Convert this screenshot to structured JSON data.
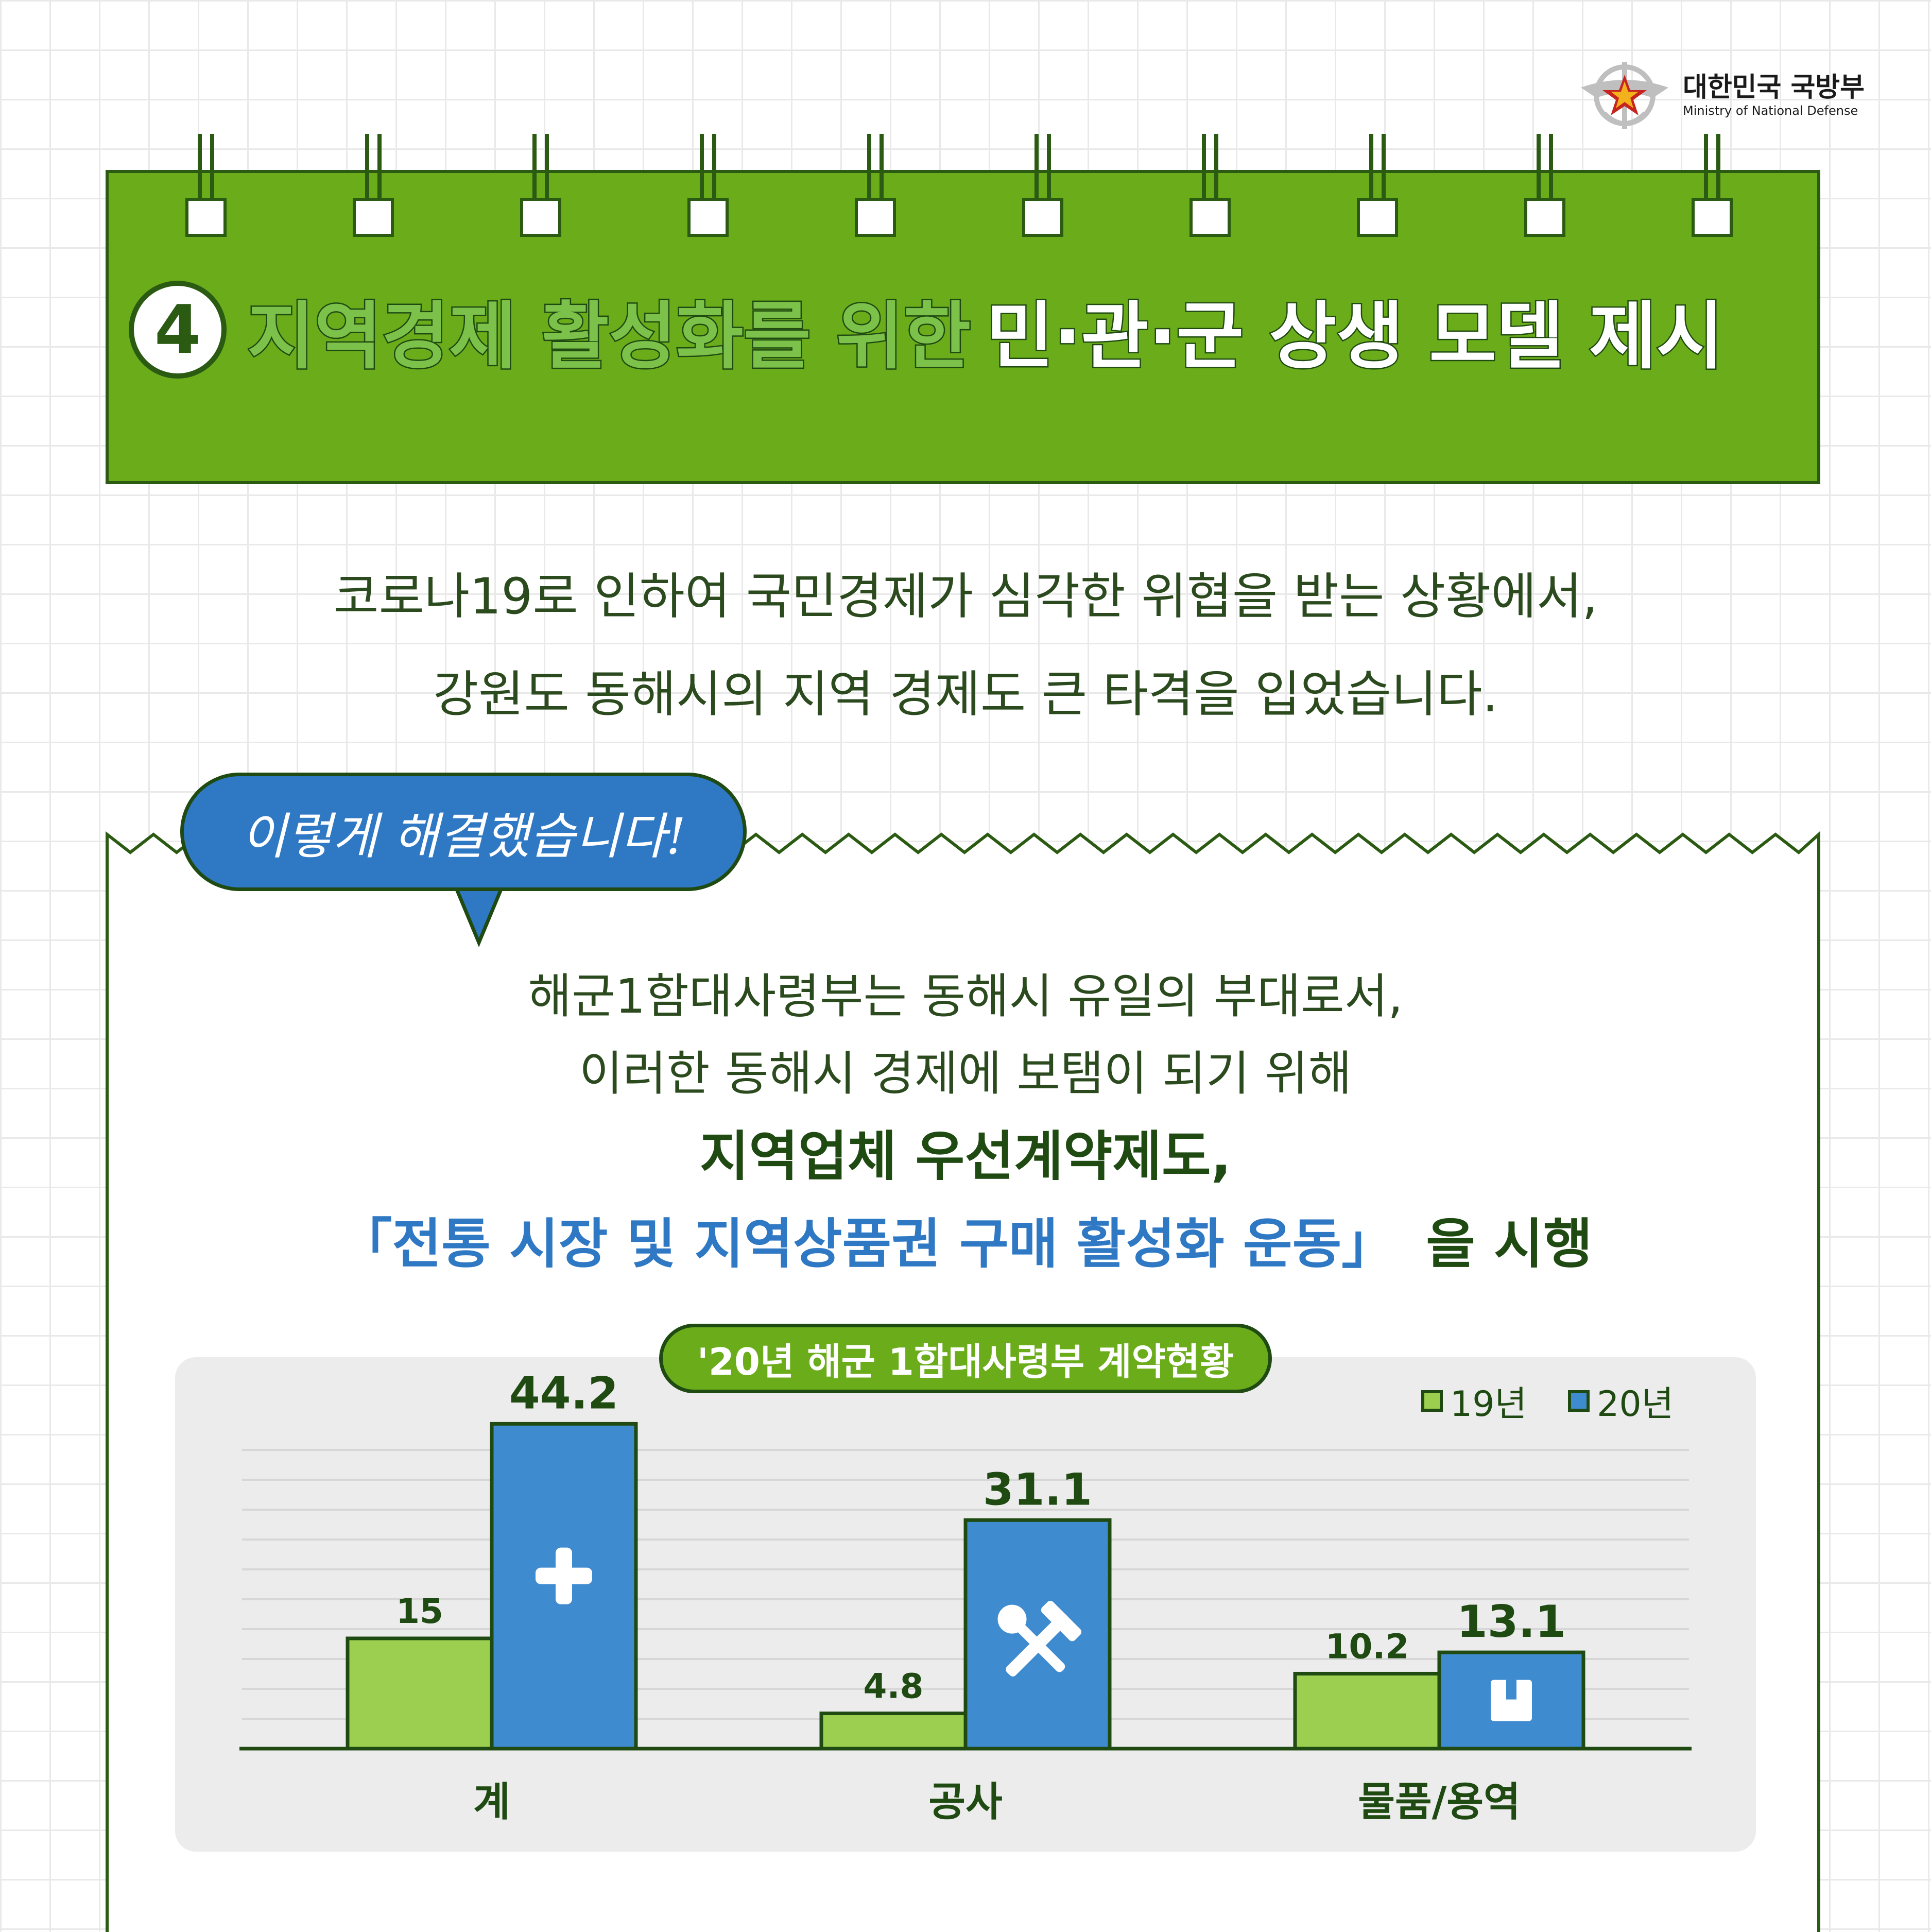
{
  "logo": {
    "ko": "대한민국 국방부",
    "en": "Ministry of National Defense"
  },
  "title": {
    "number": "4",
    "part1": "지역경제 활성화를 위한",
    "part2": "민·관·군 상생 모델 제시"
  },
  "intro": {
    "line1": "코로나19로 인하여 국민경제가 심각한 위협을 받는 상황에서,",
    "line2": "강원도 동해시의 지역 경제도 큰 타격을 입었습니다."
  },
  "bubble": "이렇게 해결했습니다!",
  "body": {
    "line1": "해군1함대사령부는 동해시 유일의 부대로서,",
    "line2": "이러한 동해시 경제에 보탬이 되기 위해",
    "line3": "지역업체 우선계약제도,",
    "line4_blue": "「전통 시장 및 지역상품권 구매 활성화 운동」",
    "line4_dark": "을 시행"
  },
  "colors": {
    "green": "#6aac1a",
    "lightgreen": "#9ccf4f",
    "blue": "#3f8bd0",
    "dark": "#1f4a12"
  },
  "chart_data": {
    "type": "bar",
    "title": "'20년 해군 1함대사령부 계약현황",
    "categories": [
      "계",
      "공사",
      "물품/용역"
    ],
    "series": [
      {
        "name": "19년",
        "values": [
          15,
          4.8,
          10.2
        ]
      },
      {
        "name": "20년",
        "values": [
          44.2,
          31.1,
          13.1
        ]
      }
    ],
    "value_labels": [
      [
        "15",
        "4.8",
        "10.2"
      ],
      [
        "44.2",
        "31.1",
        "13.1"
      ]
    ],
    "icons": [
      "plus-icon",
      "tools-icon",
      "box-icon"
    ],
    "ylim": [
      0,
      50
    ],
    "grid": true,
    "legend": "top-right"
  }
}
